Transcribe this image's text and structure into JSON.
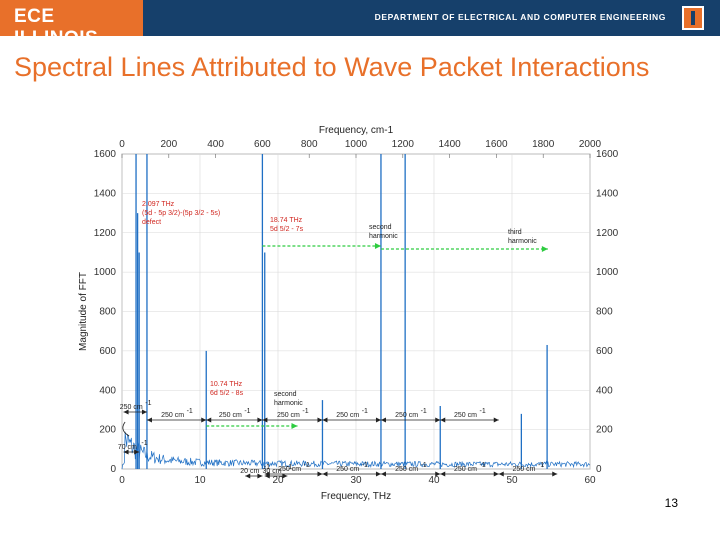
{
  "header": {
    "logo_text": "ECE ILLINOIS",
    "dept_text": "DEPARTMENT OF ELECTRICAL AND COMPUTER ENGINEERING",
    "bar_color": "#16406b",
    "accent_color": "#e8702a"
  },
  "slide": {
    "title": "Spectral Lines Attributed to Wave Packet Interactions",
    "page_number": "13"
  },
  "chart_data": {
    "type": "line",
    "xlabel": "Frequency, THz",
    "x2label": "Frequency, cm-1",
    "ylabel": "Magnitude of FFT",
    "xlim": [
      0,
      60
    ],
    "x2lim": [
      0,
      2000
    ],
    "ylim": [
      0,
      1600
    ],
    "xticks": [
      "0",
      "10",
      "20",
      "30",
      "40",
      "50",
      "60"
    ],
    "x2ticks": [
      "0",
      "200",
      "400",
      "600",
      "800",
      "1000",
      "1200",
      "1400",
      "1600",
      "1800",
      "2000"
    ],
    "yticks": [
      "0",
      "200",
      "400",
      "600",
      "800",
      "1000",
      "1200",
      "1400",
      "1600"
    ],
    "grid": true,
    "line_color": "#1f6fc4",
    "peaks": [
      {
        "x": 1.8,
        "y": 1600
      },
      {
        "x": 2.0,
        "y": 1300
      },
      {
        "x": 2.2,
        "y": 1100
      },
      {
        "x": 3.2,
        "y": 1600
      },
      {
        "x": 10.8,
        "y": 600
      },
      {
        "x": 18.0,
        "y": 1600
      },
      {
        "x": 18.3,
        "y": 1100
      },
      {
        "x": 25.7,
        "y": 350
      },
      {
        "x": 33.2,
        "y": 1600
      },
      {
        "x": 36.3,
        "y": 1600
      },
      {
        "x": 40.8,
        "y": 320
      },
      {
        "x": 51.2,
        "y": 280
      },
      {
        "x": 54.5,
        "y": 630
      }
    ],
    "annotations": {
      "red_label_1": [
        "2.097 THz",
        "(5d - 5p 3/2)-(5p 3/2 - 5s)",
        "defect"
      ],
      "red_label_2": [
        "18.74 THz",
        "5d 5/2 - 7s"
      ],
      "red_label_3": [
        "10.74 THz",
        "6d 5/2 - 8s"
      ],
      "second_harmonic_top": [
        "second",
        "harmonic"
      ],
      "third_harmonic": [
        "third",
        "harmonic"
      ],
      "second_harmonic_mid": [
        "second",
        "harmonic"
      ],
      "spacing_250": "250 cm",
      "spacing_70": "70 cm",
      "spacing_20": "20 cm",
      "spacing_30": "30 cm",
      "superscript": "-1"
    }
  }
}
